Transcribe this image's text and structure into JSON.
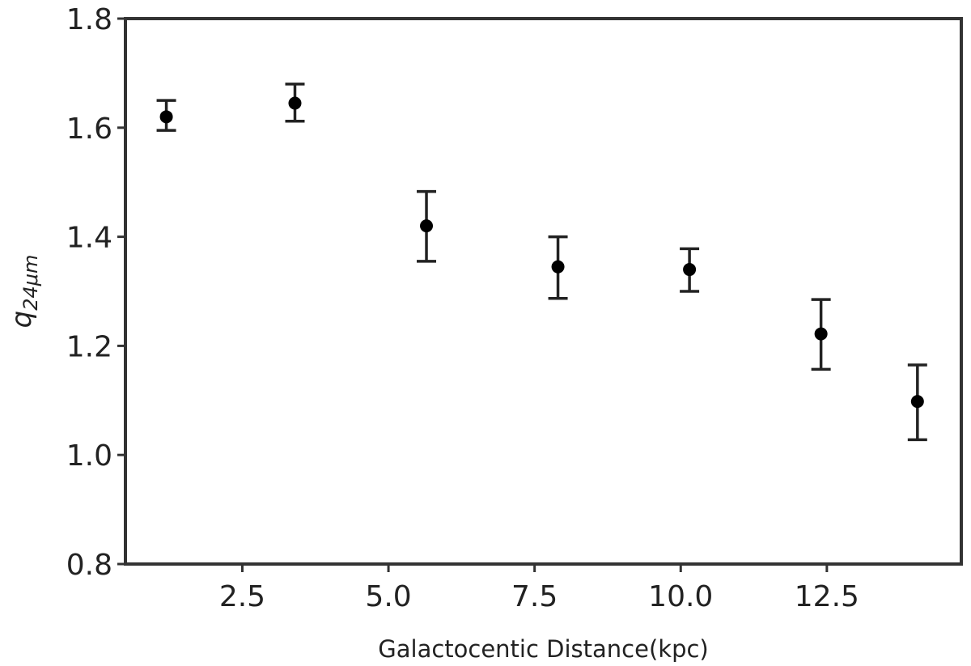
{
  "chart_data": {
    "type": "scatter",
    "title": "",
    "xlabel": "Galactocentic Distance(kpc)",
    "ylabel": {
      "base": "q",
      "subscript": "24μm"
    },
    "xlim": [
      0.5,
      14.8
    ],
    "ylim": [
      0.8,
      1.8
    ],
    "x_ticks": [
      2.5,
      5.0,
      7.5,
      10.0,
      12.5
    ],
    "x_tick_labels": [
      "2.5",
      "5.0",
      "7.5",
      "10.0",
      "12.5"
    ],
    "y_ticks": [
      0.8,
      1.0,
      1.2,
      1.4,
      1.6,
      1.8
    ],
    "y_tick_labels": [
      "0.8",
      "1.0",
      "1.2",
      "1.4",
      "1.6",
      "1.8"
    ],
    "grid": false,
    "legend": "none",
    "marker_color": "#000000",
    "errorbar_color": "#222222",
    "series": [
      {
        "points": [
          {
            "x": 1.2,
            "y": 1.62,
            "ylow": 1.595,
            "yhigh": 1.65
          },
          {
            "x": 3.4,
            "y": 1.645,
            "ylow": 1.612,
            "yhigh": 1.68
          },
          {
            "x": 5.65,
            "y": 1.42,
            "ylow": 1.355,
            "yhigh": 1.483
          },
          {
            "x": 7.9,
            "y": 1.345,
            "ylow": 1.287,
            "yhigh": 1.4
          },
          {
            "x": 10.15,
            "y": 1.34,
            "ylow": 1.3,
            "yhigh": 1.378
          },
          {
            "x": 12.4,
            "y": 1.222,
            "ylow": 1.157,
            "yhigh": 1.285
          },
          {
            "x": 14.05,
            "y": 1.098,
            "ylow": 1.028,
            "yhigh": 1.165
          }
        ]
      }
    ]
  }
}
